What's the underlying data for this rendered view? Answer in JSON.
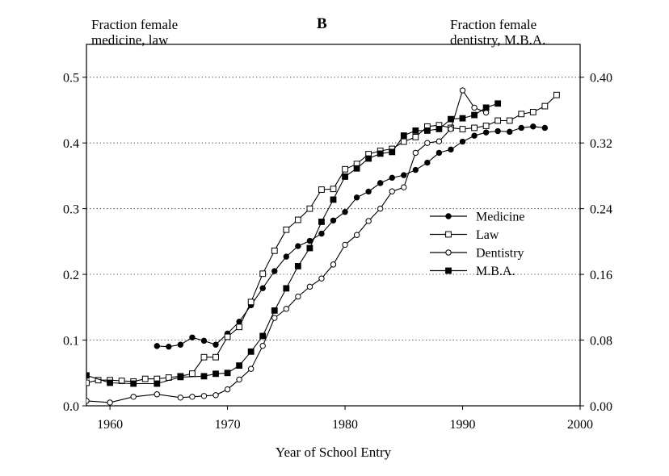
{
  "panel_label": "B",
  "left_axis_title": [
    "Fraction female",
    "medicine, law"
  ],
  "right_axis_title": [
    "Fraction female",
    "dentistry, M.B.A."
  ],
  "chart_data": {
    "type": "line",
    "xlabel": "Year of School Entry",
    "xlim": [
      1958,
      2000
    ],
    "x_ticks": [
      1960,
      1970,
      1980,
      1990,
      2000
    ],
    "ylim_left": [
      0,
      0.55
    ],
    "y_ticks_left": [
      "0.0",
      "0.1",
      "0.2",
      "0.3",
      "0.4",
      "0.5"
    ],
    "ylim_right": [
      0,
      0.44
    ],
    "y_ticks_right": [
      "0.00",
      "0.08",
      "0.16",
      "0.24",
      "0.32",
      "0.40"
    ],
    "grid": "horizontal dotted",
    "legend_position": "center-right",
    "series": [
      {
        "name": "Medicine",
        "axis": "left",
        "marker": "filled-circle",
        "x": [
          1964,
          1965,
          1966,
          1967,
          1968,
          1969,
          1970,
          1971,
          1972,
          1973,
          1974,
          1975,
          1976,
          1977,
          1978,
          1979,
          1980,
          1981,
          1982,
          1983,
          1984,
          1985,
          1986,
          1987,
          1988,
          1989,
          1990,
          1991,
          1992,
          1993,
          1994,
          1995,
          1996,
          1997
        ],
        "y": [
          0.091,
          0.09,
          0.093,
          0.104,
          0.099,
          0.093,
          0.11,
          0.128,
          0.153,
          0.179,
          0.205,
          0.227,
          0.243,
          0.251,
          0.262,
          0.282,
          0.295,
          0.317,
          0.326,
          0.339,
          0.347,
          0.351,
          0.359,
          0.37,
          0.385,
          0.39,
          0.402,
          0.411,
          0.416,
          0.418,
          0.417,
          0.423,
          0.425,
          0.423
        ]
      },
      {
        "name": "Law",
        "axis": "left",
        "marker": "open-square",
        "x": [
          1958,
          1959,
          1960,
          1961,
          1962,
          1963,
          1964,
          1965,
          1966,
          1967,
          1968,
          1969,
          1970,
          1971,
          1972,
          1973,
          1974,
          1975,
          1976,
          1977,
          1978,
          1979,
          1980,
          1981,
          1982,
          1983,
          1984,
          1985,
          1986,
          1987,
          1988,
          1989,
          1990,
          1991,
          1992,
          1993,
          1994,
          1995,
          1996,
          1997,
          1998
        ],
        "y": [
          0.035,
          0.039,
          0.039,
          0.038,
          0.037,
          0.041,
          0.041,
          0.043,
          0.045,
          0.049,
          0.074,
          0.074,
          0.105,
          0.12,
          0.158,
          0.201,
          0.236,
          0.268,
          0.283,
          0.3,
          0.329,
          0.33,
          0.36,
          0.368,
          0.383,
          0.388,
          0.391,
          0.402,
          0.409,
          0.425,
          0.427,
          0.423,
          0.421,
          0.423,
          0.426,
          0.434,
          0.434,
          0.444,
          0.447,
          0.456,
          0.473
        ]
      },
      {
        "name": "Dentistry",
        "axis": "right",
        "marker": "open-circle",
        "x": [
          1958,
          1960,
          1962,
          1964,
          1966,
          1967,
          1968,
          1969,
          1970,
          1971,
          1972,
          1973,
          1974,
          1975,
          1976,
          1977,
          1978,
          1979,
          1980,
          1981,
          1982,
          1983,
          1984,
          1985,
          1986,
          1987,
          1988,
          1989,
          1990,
          1991,
          1992
        ],
        "y": [
          0.006,
          0.004,
          0.011,
          0.014,
          0.01,
          0.011,
          0.012,
          0.013,
          0.02,
          0.032,
          0.045,
          0.073,
          0.107,
          0.118,
          0.133,
          0.145,
          0.155,
          0.172,
          0.196,
          0.208,
          0.225,
          0.24,
          0.261,
          0.266,
          0.308,
          0.32,
          0.322,
          0.337,
          0.384,
          0.363,
          0.357
        ]
      },
      {
        "name": "M.B.A.",
        "axis": "right",
        "marker": "filled-square",
        "x": [
          1958,
          1960,
          1962,
          1964,
          1966,
          1968,
          1969,
          1970,
          1971,
          1972,
          1973,
          1974,
          1975,
          1976,
          1977,
          1978,
          1979,
          1980,
          1981,
          1982,
          1983,
          1984,
          1985,
          1986,
          1987,
          1988,
          1989,
          1990,
          1991,
          1992,
          1993
        ],
        "y": [
          0.037,
          0.028,
          0.027,
          0.027,
          0.035,
          0.036,
          0.039,
          0.04,
          0.049,
          0.066,
          0.085,
          0.116,
          0.143,
          0.17,
          0.192,
          0.224,
          0.251,
          0.279,
          0.289,
          0.301,
          0.307,
          0.309,
          0.329,
          0.335,
          0.335,
          0.337,
          0.349,
          0.35,
          0.354,
          0.363,
          0.368
        ]
      }
    ]
  }
}
